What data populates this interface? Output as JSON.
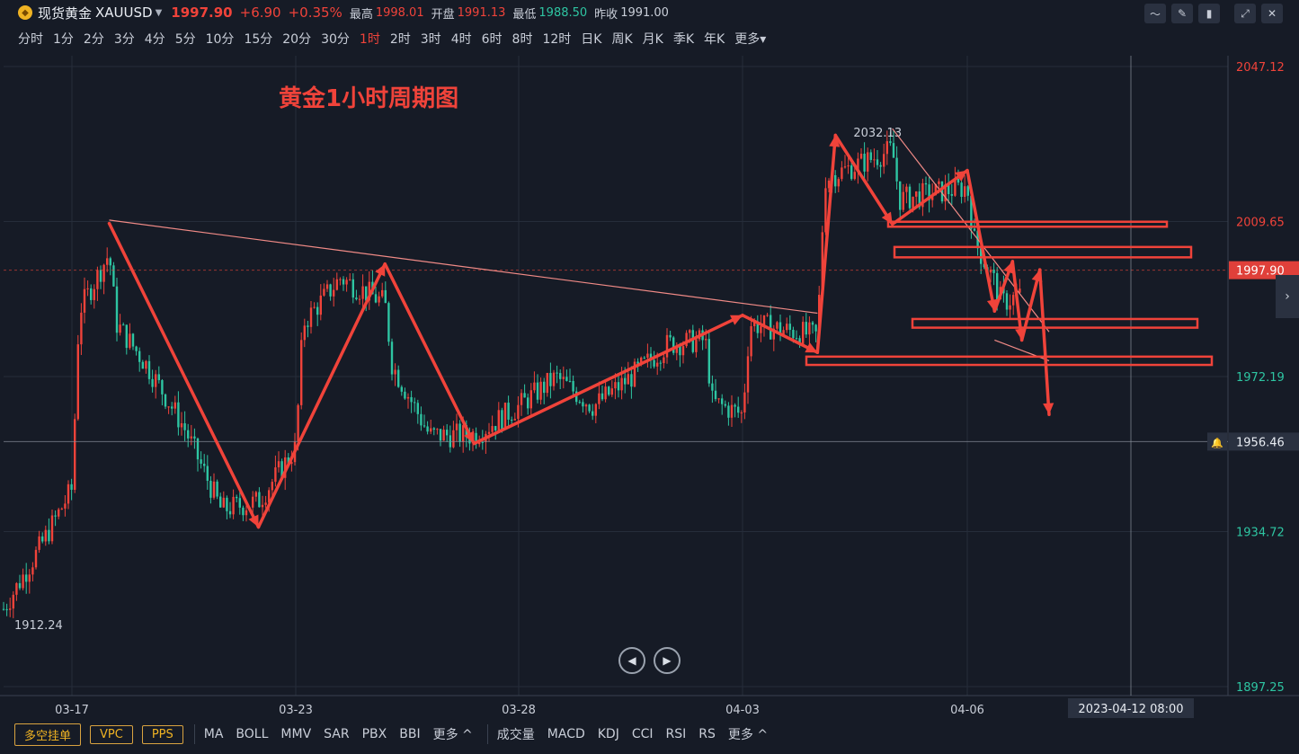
{
  "header": {
    "symbol_name": "现货黄金",
    "symbol_code": "XAUUSD",
    "price": "1997.90",
    "change": "+6.90",
    "change_pct": "+0.35%",
    "high_label": "最高",
    "high_value": "1998.01",
    "open_label": "开盘",
    "open_value": "1991.13",
    "low_label": "最低",
    "low_value": "1988.50",
    "prev_close_label": "昨收",
    "prev_close_value": "1991.00"
  },
  "periods": [
    "分时",
    "1分",
    "2分",
    "3分",
    "4分",
    "5分",
    "10分",
    "15分",
    "20分",
    "30分",
    "1时",
    "2时",
    "3时",
    "4时",
    "6时",
    "8时",
    "12时",
    "日K",
    "周K",
    "月K",
    "季K",
    "年K",
    "更多▾"
  ],
  "active_period": "1时",
  "bottom": {
    "buttons": [
      "多空挂单",
      "VPC",
      "PPS"
    ],
    "indicators_main": [
      "MA",
      "BOLL",
      "MMV",
      "SAR",
      "PBX",
      "BBI",
      "更多 ^"
    ],
    "indicators_sub": [
      "成交量",
      "MACD",
      "KDJ",
      "CCI",
      "RSI",
      "RS",
      "更多 ^"
    ]
  },
  "colors": {
    "up": "#f0433a",
    "down": "#2ec5a2",
    "annotation": "#f0433a",
    "background": "#161b26"
  },
  "chart_data": {
    "type": "candlestick",
    "title": "黄金1小时周期图",
    "ylim": [
      1897.25,
      2047.12
    ],
    "y_ticks": [
      2047.12,
      2009.65,
      1972.19,
      1934.72,
      1897.25
    ],
    "x_ticks": [
      "03-17",
      "03-23",
      "03-28",
      "04-03",
      "04-06"
    ],
    "current_price": 1997.9,
    "crosshair_price": 1956.46,
    "crosshair_time": "2023-04-12 08:00",
    "high_marker": 2032.13,
    "low_marker": 1912.24,
    "close_path": [
      [
        "03-15",
        1916
      ],
      [
        "03-16",
        1930
      ],
      [
        "03-17",
        1945
      ],
      [
        "03-17",
        1988
      ],
      [
        "03-18",
        2002
      ],
      [
        "03-18",
        1985
      ],
      [
        "03-19",
        1975
      ],
      [
        "03-20",
        1960
      ],
      [
        "03-21",
        1940
      ],
      [
        "03-22",
        1942
      ],
      [
        "03-23",
        1955
      ],
      [
        "03-23",
        1985
      ],
      [
        "03-24",
        1996
      ],
      [
        "03-25",
        1990
      ],
      [
        "03-25",
        1975
      ],
      [
        "03-26",
        1958
      ],
      [
        "03-27",
        1958
      ],
      [
        "03-28",
        1965
      ],
      [
        "03-29",
        1972
      ],
      [
        "03-30",
        1965
      ],
      [
        "03-31",
        1972
      ],
      [
        "04-01",
        1980
      ],
      [
        "04-02",
        1981
      ],
      [
        "04-02",
        1966
      ],
      [
        "04-03",
        1963
      ],
      [
        "04-03",
        1985
      ],
      [
        "04-04",
        1982
      ],
      [
        "04-04",
        2020
      ],
      [
        "04-05",
        2027
      ],
      [
        "04-05",
        2015
      ],
      [
        "04-06",
        2018
      ],
      [
        "04-06",
        2005
      ],
      [
        "04-07",
        1995
      ],
      [
        "04-07",
        1990
      ],
      [
        "04-08",
        1992
      ]
    ],
    "annotations": {
      "zigzag": [
        [
          "03-18",
          2009.2
        ],
        [
          "03-22",
          1935.8
        ],
        [
          "03-25",
          1999.4
        ],
        [
          "03-27",
          1956.0
        ],
        [
          "04-03",
          1987.0
        ],
        [
          "04-04",
          1978.0
        ],
        [
          "04-04",
          2030.5
        ],
        [
          "04-05",
          2009.0
        ],
        [
          "04-06",
          2022.0
        ],
        [
          "04-07",
          1988.0
        ],
        [
          "04-07",
          2000.0
        ],
        [
          "04-08",
          1981.0
        ],
        [
          "04-08",
          1998.0
        ],
        [
          "04-09",
          1963.0
        ]
      ],
      "trendlines": [
        [
          [
            "03-18",
            2010.0
          ],
          [
            "04-04",
            1987.5
          ]
        ],
        [
          [
            "04-05",
            2032.1
          ],
          [
            "04-09",
            1983.0
          ]
        ],
        [
          [
            "04-07",
            1981.0
          ],
          [
            "04-09",
            1976.0
          ]
        ]
      ],
      "zones": [
        [
          2009.6,
          2008.4
        ],
        [
          2003.5,
          2001.0
        ],
        [
          1986.1,
          1984.0
        ],
        [
          1977.0,
          1975.0
        ]
      ]
    }
  }
}
